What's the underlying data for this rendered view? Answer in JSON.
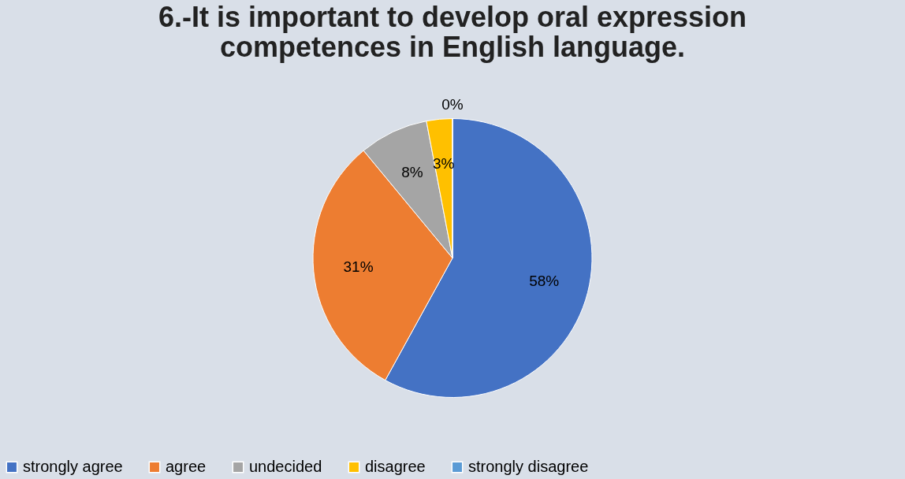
{
  "chart_data": {
    "type": "pie",
    "title": [
      "6.-It is important to develop oral expression",
      "competences in English language."
    ],
    "categories": [
      "strongly agree",
      "agree",
      "undecided",
      "disagree",
      "strongly disagree"
    ],
    "values": [
      58,
      31,
      8,
      3,
      0
    ],
    "value_labels": [
      "58%",
      "31%",
      "8%",
      "3%",
      "0%"
    ],
    "colors": [
      "#4472c4",
      "#ed7d31",
      "#a5a5a5",
      "#ffc000",
      "#5b9bd5"
    ],
    "legend": "bottom"
  }
}
